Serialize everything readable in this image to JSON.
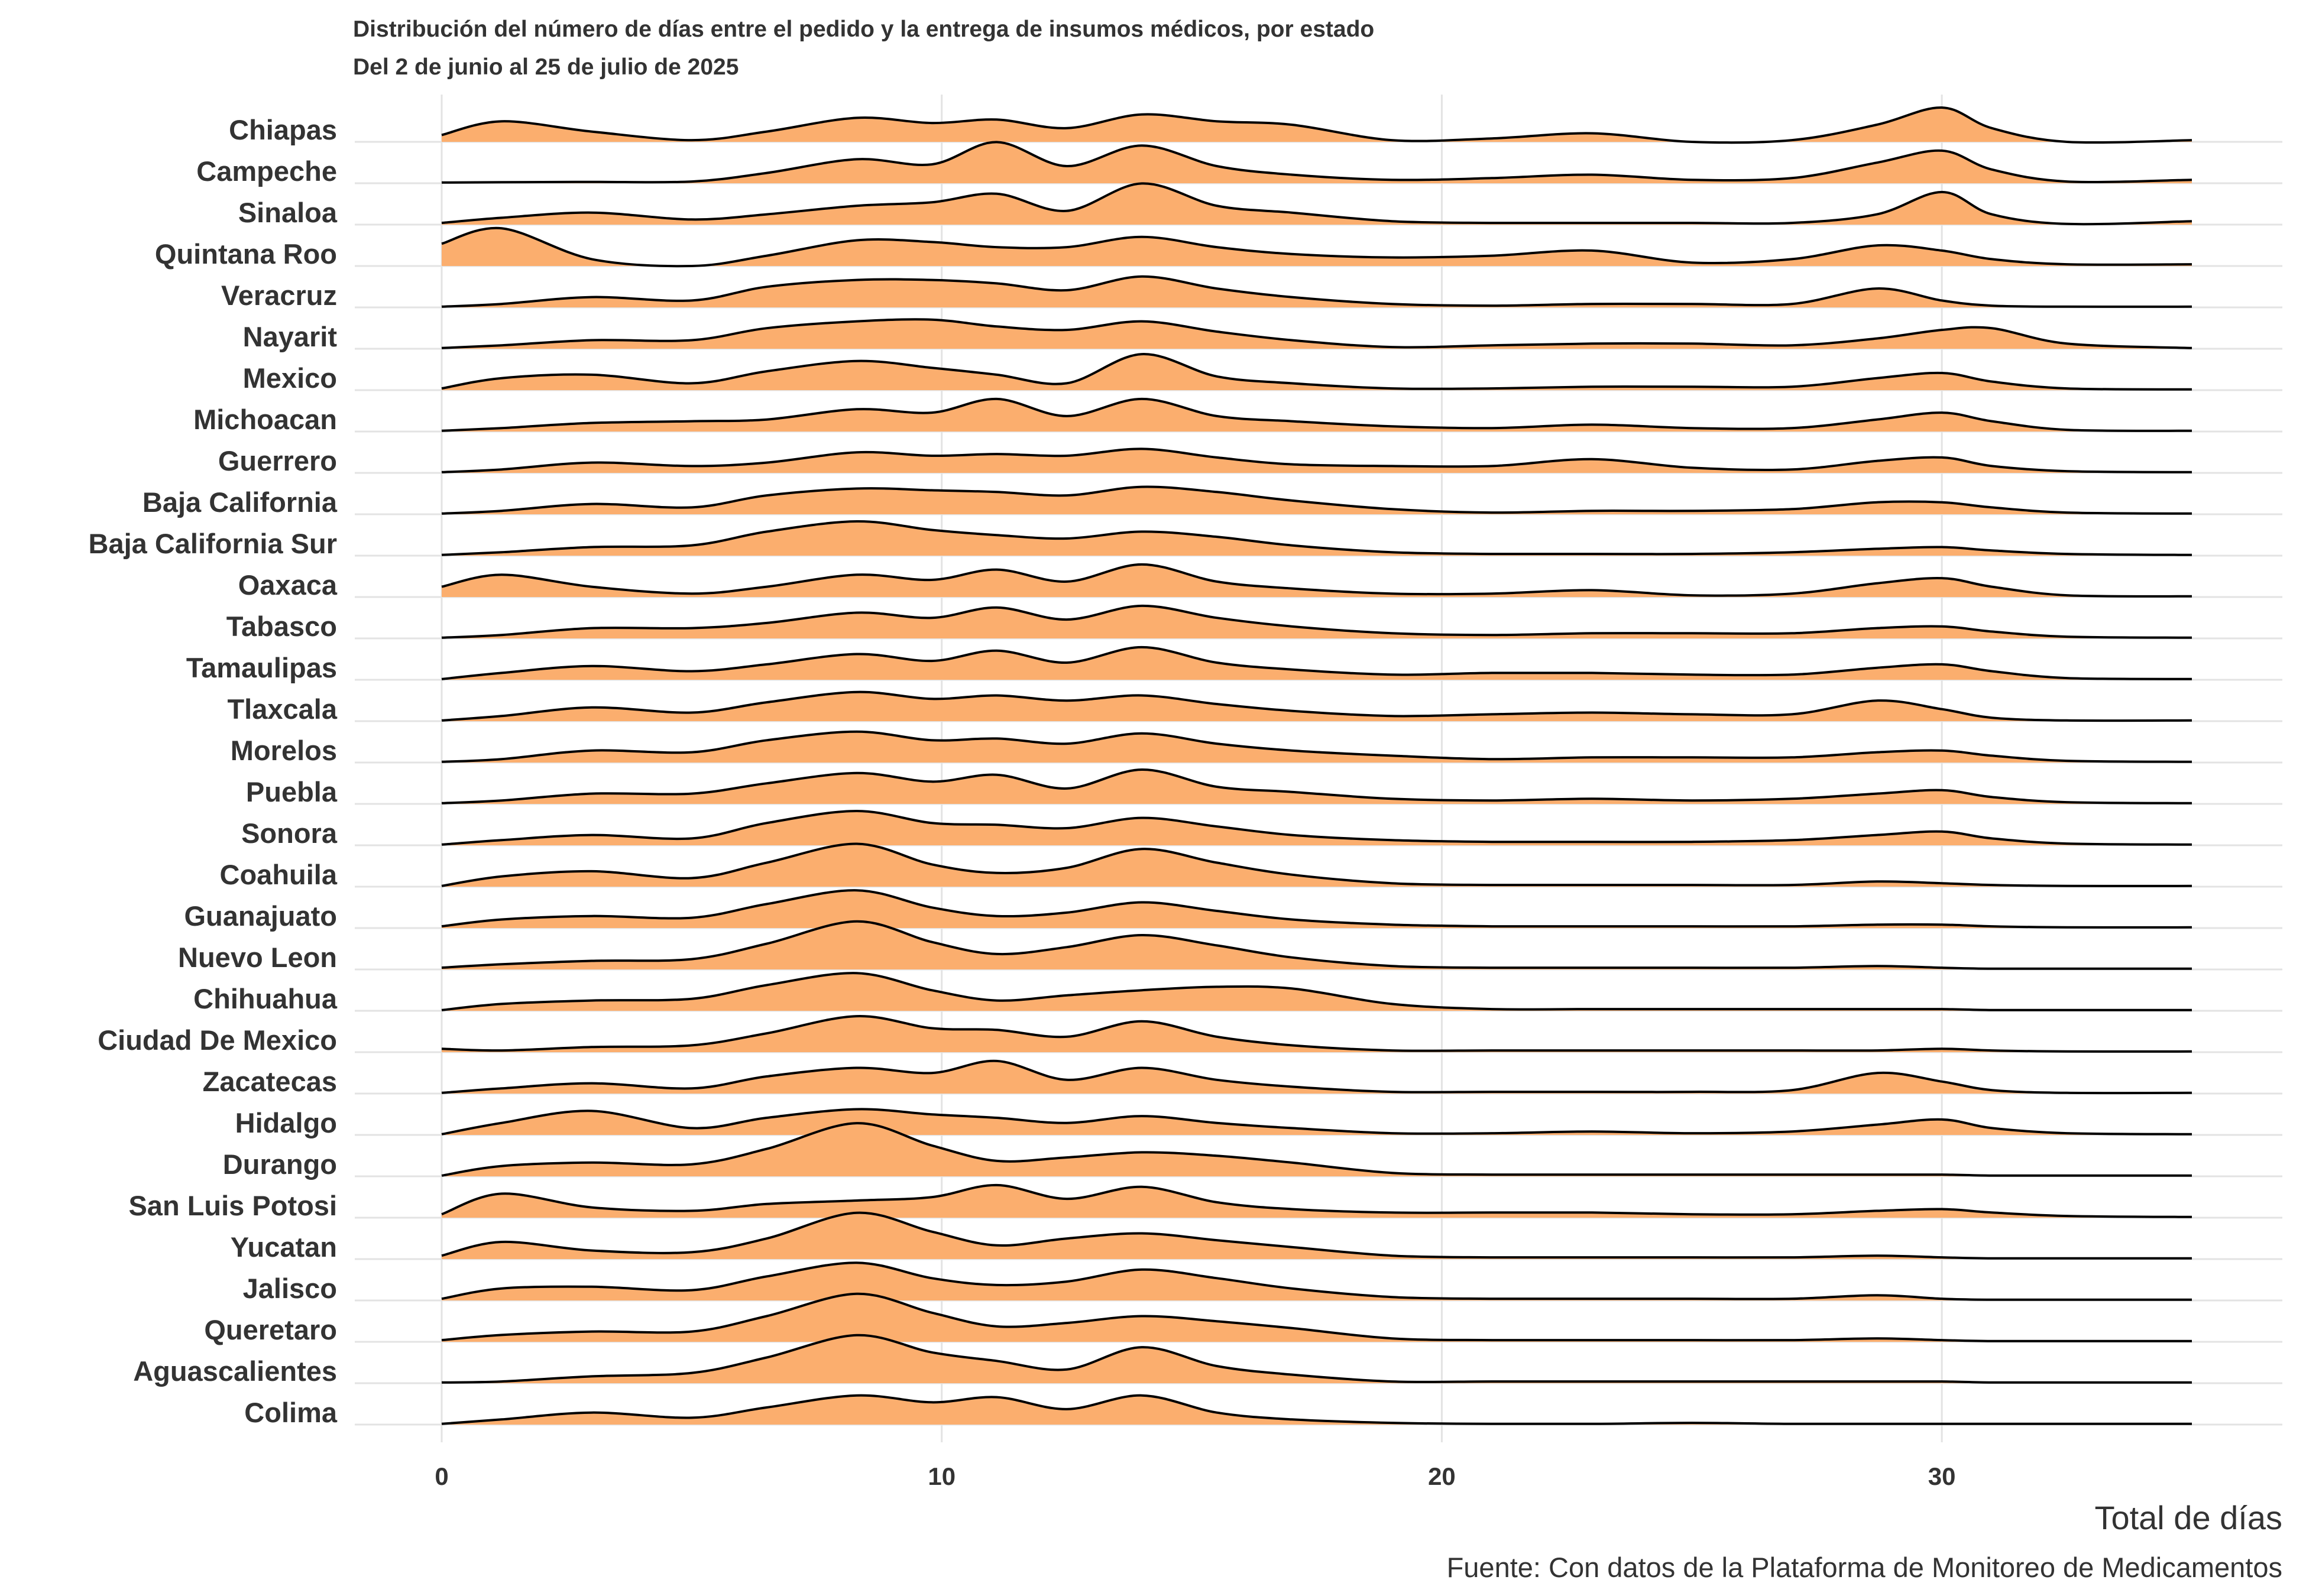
{
  "title": "Distribución del número de días entre el pedido y la entrega de insumos médicos, por estado",
  "subtitle": "Del 2 de junio al 25 de julio de 2025",
  "caption": "Fuente: Con datos de la Plataforma de Monitoreo de Medicamentos",
  "colors": {
    "fill": "#FBAE6E",
    "stroke": "#000000",
    "grid": "#E3E3E3"
  },
  "chart_data": {
    "type": "ridgeline",
    "xlabel": "Total de días",
    "xlim": [
      0,
      35
    ],
    "xticks": [
      0,
      10,
      20,
      30
    ],
    "grid": true,
    "legend": "none",
    "x_nodes": [
      0,
      1.2,
      3,
      5,
      6.5,
      8.3,
      9.8,
      11.1,
      12.5,
      14,
      15.5,
      17,
      19,
      21,
      23,
      25,
      27,
      28.7,
      30,
      31,
      32.5,
      35
    ],
    "series": [
      {
        "name": "Chiapas",
        "values": [
          0.2,
          0.6,
          0.3,
          0.05,
          0.3,
          0.7,
          0.55,
          0.65,
          0.4,
          0.8,
          0.6,
          0.5,
          0.05,
          0.1,
          0.25,
          0.0,
          0.05,
          0.5,
          1.0,
          0.4,
          0.0,
          0.05
        ]
      },
      {
        "name": "Campeche",
        "values": [
          0.02,
          0.03,
          0.04,
          0.05,
          0.3,
          0.7,
          0.55,
          1.2,
          0.5,
          1.1,
          0.5,
          0.25,
          0.1,
          0.15,
          0.25,
          0.1,
          0.15,
          0.6,
          0.95,
          0.4,
          0.05,
          0.1
        ]
      },
      {
        "name": "Sinaloa",
        "values": [
          0.05,
          0.2,
          0.35,
          0.15,
          0.3,
          0.55,
          0.65,
          0.9,
          0.4,
          1.2,
          0.55,
          0.35,
          0.1,
          0.05,
          0.05,
          0.05,
          0.05,
          0.3,
          0.95,
          0.3,
          0.02,
          0.1
        ]
      },
      {
        "name": "Quintana Roo",
        "values": [
          0.65,
          1.1,
          0.2,
          0.0,
          0.3,
          0.75,
          0.7,
          0.55,
          0.55,
          0.85,
          0.55,
          0.35,
          0.25,
          0.3,
          0.45,
          0.1,
          0.2,
          0.6,
          0.45,
          0.2,
          0.05,
          0.05
        ]
      },
      {
        "name": "Veracruz",
        "values": [
          0.02,
          0.1,
          0.3,
          0.2,
          0.6,
          0.8,
          0.8,
          0.7,
          0.5,
          0.9,
          0.55,
          0.3,
          0.1,
          0.05,
          0.1,
          0.1,
          0.1,
          0.55,
          0.2,
          0.05,
          0.02,
          0.02
        ]
      },
      {
        "name": "Nayarit",
        "values": [
          0.02,
          0.1,
          0.25,
          0.25,
          0.6,
          0.8,
          0.85,
          0.65,
          0.55,
          0.8,
          0.5,
          0.25,
          0.05,
          0.1,
          0.15,
          0.15,
          0.1,
          0.3,
          0.55,
          0.6,
          0.15,
          0.02
        ]
      },
      {
        "name": "Mexico",
        "values": [
          0.05,
          0.35,
          0.45,
          0.2,
          0.55,
          0.85,
          0.65,
          0.45,
          0.2,
          1.05,
          0.4,
          0.2,
          0.05,
          0.05,
          0.1,
          0.1,
          0.1,
          0.35,
          0.5,
          0.25,
          0.05,
          0.02
        ]
      },
      {
        "name": "Michoacan",
        "values": [
          0.02,
          0.1,
          0.25,
          0.3,
          0.35,
          0.65,
          0.55,
          0.95,
          0.45,
          0.95,
          0.45,
          0.3,
          0.15,
          0.1,
          0.2,
          0.1,
          0.1,
          0.35,
          0.55,
          0.3,
          0.05,
          0.02
        ]
      },
      {
        "name": "Guerrero",
        "values": [
          0.02,
          0.1,
          0.3,
          0.2,
          0.3,
          0.6,
          0.5,
          0.55,
          0.5,
          0.7,
          0.45,
          0.25,
          0.2,
          0.2,
          0.4,
          0.15,
          0.1,
          0.35,
          0.45,
          0.2,
          0.05,
          0.02
        ]
      },
      {
        "name": "Baja California",
        "values": [
          0.02,
          0.1,
          0.3,
          0.2,
          0.55,
          0.75,
          0.7,
          0.65,
          0.55,
          0.8,
          0.65,
          0.4,
          0.15,
          0.05,
          0.1,
          0.1,
          0.15,
          0.35,
          0.35,
          0.2,
          0.05,
          0.02
        ]
      },
      {
        "name": "Baja California Sur",
        "values": [
          0.02,
          0.1,
          0.25,
          0.3,
          0.7,
          1.0,
          0.75,
          0.6,
          0.5,
          0.7,
          0.55,
          0.3,
          0.1,
          0.05,
          0.05,
          0.05,
          0.1,
          0.2,
          0.25,
          0.15,
          0.05,
          0.02
        ]
      },
      {
        "name": "Oaxaca",
        "values": [
          0.3,
          0.65,
          0.3,
          0.1,
          0.3,
          0.65,
          0.5,
          0.8,
          0.45,
          0.95,
          0.45,
          0.25,
          0.1,
          0.1,
          0.2,
          0.05,
          0.1,
          0.4,
          0.55,
          0.3,
          0.05,
          0.02
        ]
      },
      {
        "name": "Tabasco",
        "values": [
          0.02,
          0.1,
          0.3,
          0.3,
          0.45,
          0.75,
          0.6,
          0.9,
          0.55,
          0.95,
          0.6,
          0.35,
          0.15,
          0.1,
          0.15,
          0.15,
          0.15,
          0.3,
          0.35,
          0.2,
          0.05,
          0.02
        ]
      },
      {
        "name": "Tamaulipas",
        "values": [
          0.02,
          0.2,
          0.4,
          0.25,
          0.45,
          0.75,
          0.55,
          0.85,
          0.5,
          0.95,
          0.5,
          0.3,
          0.15,
          0.2,
          0.2,
          0.15,
          0.15,
          0.35,
          0.45,
          0.25,
          0.05,
          0.02
        ]
      },
      {
        "name": "Tlaxcala",
        "values": [
          0.02,
          0.15,
          0.4,
          0.25,
          0.55,
          0.85,
          0.65,
          0.75,
          0.6,
          0.75,
          0.5,
          0.3,
          0.15,
          0.2,
          0.25,
          0.2,
          0.2,
          0.6,
          0.35,
          0.1,
          0.02,
          0.02
        ]
      },
      {
        "name": "Morelos",
        "values": [
          0.02,
          0.1,
          0.35,
          0.3,
          0.65,
          0.9,
          0.65,
          0.7,
          0.55,
          0.85,
          0.55,
          0.35,
          0.2,
          0.1,
          0.15,
          0.15,
          0.15,
          0.3,
          0.35,
          0.2,
          0.05,
          0.02
        ]
      },
      {
        "name": "Puebla",
        "values": [
          0.02,
          0.1,
          0.3,
          0.3,
          0.6,
          0.9,
          0.65,
          0.85,
          0.45,
          1.0,
          0.5,
          0.35,
          0.15,
          0.1,
          0.15,
          0.1,
          0.15,
          0.3,
          0.4,
          0.2,
          0.05,
          0.02
        ]
      },
      {
        "name": "Sonora",
        "values": [
          0.02,
          0.15,
          0.3,
          0.2,
          0.65,
          1.0,
          0.65,
          0.6,
          0.5,
          0.8,
          0.55,
          0.3,
          0.15,
          0.1,
          0.1,
          0.1,
          0.15,
          0.3,
          0.4,
          0.2,
          0.05,
          0.02
        ]
      },
      {
        "name": "Coahuila",
        "values": [
          0.02,
          0.3,
          0.45,
          0.25,
          0.7,
          1.25,
          0.65,
          0.4,
          0.55,
          1.1,
          0.7,
          0.35,
          0.1,
          0.05,
          0.05,
          0.05,
          0.05,
          0.15,
          0.1,
          0.05,
          0.02,
          0.02
        ]
      },
      {
        "name": "Guanajuato",
        "values": [
          0.05,
          0.25,
          0.35,
          0.3,
          0.7,
          1.1,
          0.6,
          0.35,
          0.45,
          0.75,
          0.5,
          0.25,
          0.1,
          0.05,
          0.05,
          0.05,
          0.05,
          0.1,
          0.1,
          0.05,
          0.02,
          0.02
        ]
      },
      {
        "name": "Nuevo Leon",
        "values": [
          0.05,
          0.15,
          0.25,
          0.3,
          0.75,
          1.4,
          0.8,
          0.45,
          0.65,
          1.0,
          0.7,
          0.35,
          0.1,
          0.05,
          0.05,
          0.05,
          0.05,
          0.1,
          0.05,
          0.02,
          0.02,
          0.02
        ]
      },
      {
        "name": "Chihuahua",
        "values": [
          0.02,
          0.2,
          0.3,
          0.35,
          0.75,
          1.1,
          0.6,
          0.3,
          0.45,
          0.6,
          0.7,
          0.65,
          0.2,
          0.05,
          0.05,
          0.05,
          0.05,
          0.05,
          0.05,
          0.02,
          0.02,
          0.02
        ]
      },
      {
        "name": "Ciudad De Mexico",
        "values": [
          0.1,
          0.05,
          0.15,
          0.2,
          0.55,
          1.05,
          0.7,
          0.65,
          0.45,
          0.9,
          0.45,
          0.2,
          0.05,
          0.05,
          0.05,
          0.05,
          0.05,
          0.05,
          0.1,
          0.05,
          0.02,
          0.02
        ]
      },
      {
        "name": "Zacatecas",
        "values": [
          0.02,
          0.15,
          0.3,
          0.15,
          0.5,
          0.75,
          0.6,
          0.95,
          0.4,
          0.75,
          0.4,
          0.2,
          0.05,
          0.05,
          0.05,
          0.05,
          0.1,
          0.6,
          0.35,
          0.1,
          0.02,
          0.02
        ]
      },
      {
        "name": "Hidalgo",
        "values": [
          0.02,
          0.35,
          0.7,
          0.2,
          0.5,
          0.75,
          0.6,
          0.5,
          0.35,
          0.55,
          0.35,
          0.2,
          0.05,
          0.05,
          0.1,
          0.05,
          0.1,
          0.3,
          0.45,
          0.2,
          0.05,
          0.02
        ]
      },
      {
        "name": "Durango",
        "values": [
          0.02,
          0.3,
          0.4,
          0.35,
          0.8,
          1.55,
          0.9,
          0.45,
          0.55,
          0.7,
          0.6,
          0.4,
          0.1,
          0.05,
          0.05,
          0.05,
          0.05,
          0.05,
          0.05,
          0.02,
          0.02,
          0.02
        ]
      },
      {
        "name": "San Luis Potosi",
        "values": [
          0.1,
          0.7,
          0.3,
          0.2,
          0.4,
          0.5,
          0.6,
          0.95,
          0.55,
          0.9,
          0.45,
          0.25,
          0.15,
          0.15,
          0.15,
          0.1,
          0.1,
          0.2,
          0.25,
          0.15,
          0.05,
          0.02
        ]
      },
      {
        "name": "Yucatan",
        "values": [
          0.1,
          0.5,
          0.25,
          0.2,
          0.6,
          1.35,
          0.8,
          0.4,
          0.6,
          0.75,
          0.55,
          0.35,
          0.1,
          0.05,
          0.05,
          0.05,
          0.05,
          0.1,
          0.05,
          0.02,
          0.02,
          0.02
        ]
      },
      {
        "name": "Jalisco",
        "values": [
          0.05,
          0.35,
          0.4,
          0.3,
          0.7,
          1.1,
          0.65,
          0.45,
          0.55,
          0.9,
          0.65,
          0.35,
          0.1,
          0.05,
          0.05,
          0.05,
          0.05,
          0.15,
          0.05,
          0.02,
          0.02,
          0.02
        ]
      },
      {
        "name": "Queretaro",
        "values": [
          0.05,
          0.2,
          0.3,
          0.3,
          0.75,
          1.4,
          0.85,
          0.45,
          0.55,
          0.75,
          0.6,
          0.4,
          0.1,
          0.05,
          0.05,
          0.05,
          0.05,
          0.1,
          0.05,
          0.02,
          0.02,
          0.02
        ]
      },
      {
        "name": "Aguascalientes",
        "values": [
          0.02,
          0.05,
          0.2,
          0.3,
          0.75,
          1.4,
          0.9,
          0.65,
          0.4,
          1.05,
          0.5,
          0.25,
          0.05,
          0.05,
          0.05,
          0.05,
          0.05,
          0.05,
          0.05,
          0.02,
          0.02,
          0.02
        ]
      },
      {
        "name": "Colima",
        "values": [
          0.02,
          0.15,
          0.35,
          0.2,
          0.5,
          0.85,
          0.65,
          0.8,
          0.45,
          0.85,
          0.35,
          0.15,
          0.05,
          0.02,
          0.02,
          0.05,
          0.02,
          0.02,
          0.02,
          0.02,
          0.02,
          0.02
        ]
      }
    ]
  }
}
